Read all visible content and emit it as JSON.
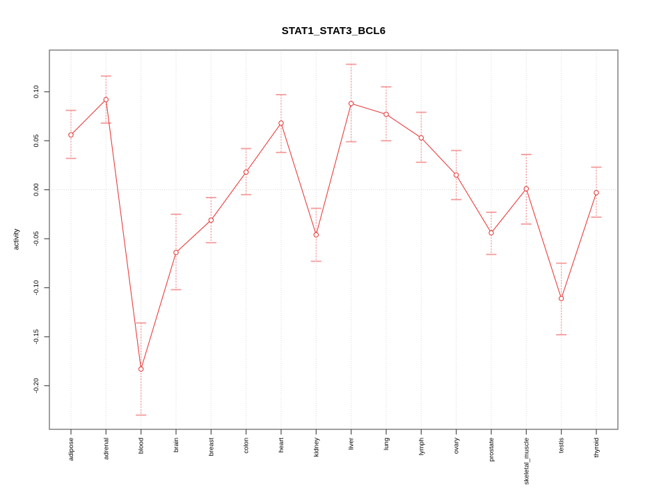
{
  "chart_data": {
    "type": "line",
    "title": "STAT1_STAT3_BCL6",
    "xlabel": "",
    "ylabel": "activity",
    "categories": [
      "adipose",
      "adrenal",
      "blood",
      "brain",
      "breast",
      "colon",
      "heart",
      "kidney",
      "liver",
      "lung",
      "lymph",
      "ovary",
      "prostate",
      "skeletal_muscle",
      "testis",
      "thyroid"
    ],
    "series": [
      {
        "name": "activity",
        "values": [
          0.056,
          0.092,
          -0.183,
          -0.064,
          -0.031,
          0.018,
          0.068,
          -0.046,
          0.088,
          0.077,
          0.053,
          0.015,
          -0.044,
          0.001,
          -0.111,
          -0.003
        ],
        "error_high": [
          0.081,
          0.116,
          -0.136,
          -0.025,
          -0.008,
          0.042,
          0.097,
          -0.019,
          0.128,
          0.105,
          0.079,
          0.04,
          -0.023,
          0.036,
          -0.075,
          0.023
        ],
        "error_low": [
          0.032,
          0.068,
          -0.23,
          -0.102,
          -0.054,
          -0.005,
          0.038,
          -0.073,
          0.049,
          0.05,
          0.028,
          -0.01,
          -0.066,
          -0.035,
          -0.148,
          -0.028
        ]
      }
    ],
    "ytick_labels": [
      "0.10",
      "0.05",
      "0.00",
      "-0.05",
      "-0.10",
      "-0.15",
      "-0.20"
    ],
    "ytick_values": [
      0.1,
      0.05,
      0.0,
      -0.05,
      -0.1,
      -0.15,
      -0.2
    ],
    "ylim": [
      -0.2445,
      0.1425
    ],
    "marker": "open-circle",
    "legend": "none",
    "grid": {
      "vertical_per_category": true,
      "horizontal_zero_line": true,
      "style": "dotted"
    },
    "colors": {
      "series": "#e83e3e",
      "error_bar": "#f59b9b",
      "frame": "#898989",
      "tick": "#4a4a4a",
      "grid": "#d9d9d9",
      "text": "#000000",
      "background": "#ffffff"
    }
  }
}
